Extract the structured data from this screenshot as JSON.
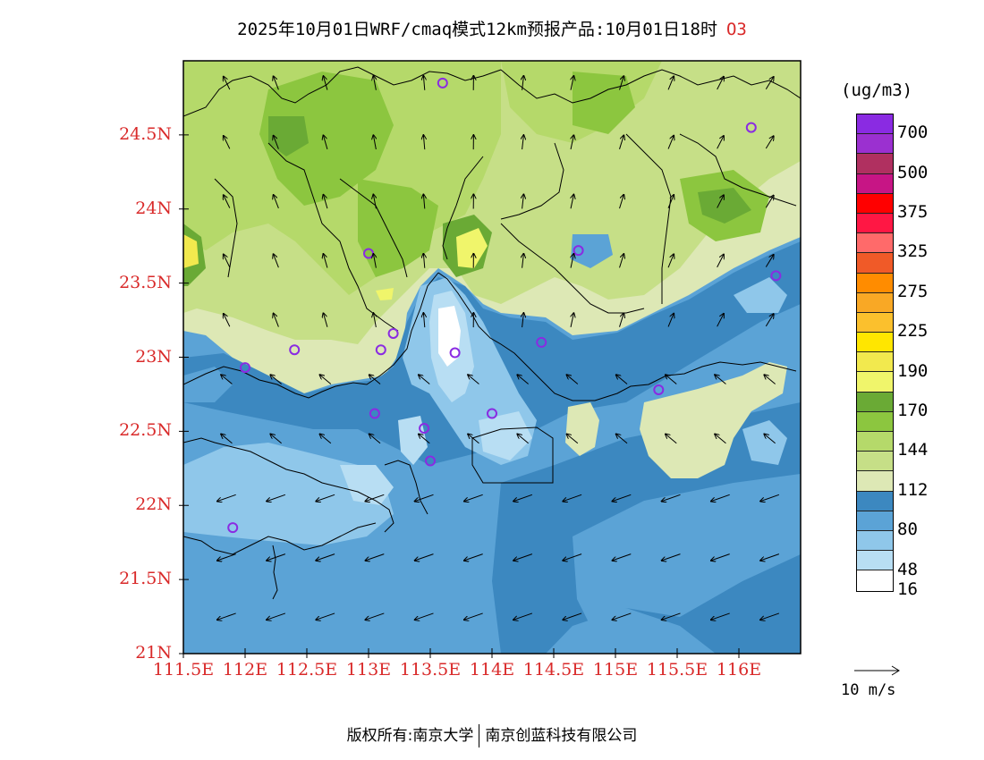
{
  "title": {
    "main": "2025年10月01日WRF/cmaq模式12km预报产品:10月01日18时",
    "species": "O3"
  },
  "axes": {
    "y_labels": [
      "24.5N",
      "24N",
      "23.5N",
      "23N",
      "22.5N",
      "22N",
      "21.5N",
      "21N"
    ],
    "x_labels": [
      "111.5E",
      "112E",
      "112.5E",
      "113E",
      "113.5E",
      "114E",
      "114.5E",
      "115E",
      "115.5E",
      "116E"
    ]
  },
  "legend": {
    "unit": "(ug/m3)",
    "labels": [
      "700",
      "500",
      "375",
      "325",
      "275",
      "225",
      "190",
      "170",
      "144",
      "112",
      "80",
      "48",
      "16"
    ],
    "colors": [
      "#8a2be2",
      "#9b30d0",
      "#b03060",
      "#c71585",
      "#ff0000",
      "#ff1744",
      "#ff6a6a",
      "#f05a28",
      "#ff8c00",
      "#f9a825",
      "#fbc02d",
      "#ffe600",
      "#f2e94e",
      "#f0f56b",
      "#6aaa35",
      "#8cc63f",
      "#b5d96a",
      "#c6df87",
      "#dde8b5",
      "#3c88c0",
      "#5ba3d6",
      "#8fc7ea",
      "#b8def3",
      "#ffffff"
    ]
  },
  "wind": {
    "reference_label": "10 m/s"
  },
  "footer": {
    "left": "版权所有:南京大学",
    "right": "南京创蓝科技有限公司"
  },
  "sites": [
    {
      "lon": 113.6,
      "lat": 24.85
    },
    {
      "lon": 116.1,
      "lat": 24.55
    },
    {
      "lon": 113.0,
      "lat": 23.7
    },
    {
      "lon": 114.7,
      "lat": 23.72
    },
    {
      "lon": 116.3,
      "lat": 23.55
    },
    {
      "lon": 112.4,
      "lat": 23.05
    },
    {
      "lon": 113.1,
      "lat": 23.05
    },
    {
      "lon": 113.2,
      "lat": 23.16
    },
    {
      "lon": 113.7,
      "lat": 23.03
    },
    {
      "lon": 114.4,
      "lat": 23.1
    },
    {
      "lon": 112.0,
      "lat": 22.93
    },
    {
      "lon": 113.05,
      "lat": 22.62
    },
    {
      "lon": 113.45,
      "lat": 22.52
    },
    {
      "lon": 114.0,
      "lat": 22.62
    },
    {
      "lon": 113.5,
      "lat": 22.3
    },
    {
      "lon": 115.35,
      "lat": 22.78
    },
    {
      "lon": 111.9,
      "lat": 21.85
    }
  ]
}
